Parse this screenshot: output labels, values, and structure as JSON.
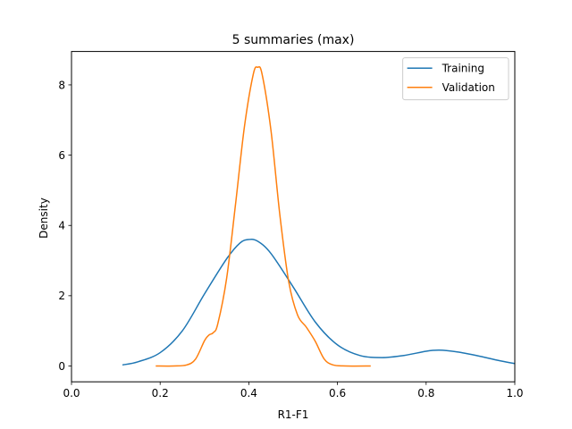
{
  "chart_data": {
    "type": "line",
    "title": "5 summaries (max)",
    "xlabel": "R1-F1",
    "ylabel": "Density",
    "xlim": [
      0.0,
      1.0
    ],
    "ylim": [
      -0.45,
      8.95
    ],
    "xticks": [
      0.0,
      0.2,
      0.4,
      0.6,
      0.8,
      1.0
    ],
    "xtick_labels": [
      "0.0",
      "0.2",
      "0.4",
      "0.6",
      "0.8",
      "1.0"
    ],
    "yticks": [
      0,
      2,
      4,
      6,
      8
    ],
    "ytick_labels": [
      "0",
      "2",
      "4",
      "6",
      "8"
    ],
    "grid": false,
    "legend_position": "top-right",
    "series": [
      {
        "name": "Training",
        "color": "#1f77b4",
        "points": [
          [
            0.115,
            0.03
          ],
          [
            0.15,
            0.12
          ],
          [
            0.2,
            0.38
          ],
          [
            0.25,
            1.0
          ],
          [
            0.3,
            2.05
          ],
          [
            0.35,
            3.05
          ],
          [
            0.38,
            3.5
          ],
          [
            0.4,
            3.6
          ],
          [
            0.42,
            3.55
          ],
          [
            0.45,
            3.2
          ],
          [
            0.5,
            2.25
          ],
          [
            0.55,
            1.25
          ],
          [
            0.6,
            0.6
          ],
          [
            0.65,
            0.3
          ],
          [
            0.7,
            0.24
          ],
          [
            0.75,
            0.3
          ],
          [
            0.8,
            0.42
          ],
          [
            0.83,
            0.45
          ],
          [
            0.87,
            0.4
          ],
          [
            0.92,
            0.28
          ],
          [
            0.97,
            0.14
          ],
          [
            1.0,
            0.07
          ]
        ]
      },
      {
        "name": "Validation",
        "color": "#ff7f0e",
        "points": [
          [
            0.19,
            0.0
          ],
          [
            0.23,
            0.0
          ],
          [
            0.26,
            0.03
          ],
          [
            0.28,
            0.2
          ],
          [
            0.3,
            0.72
          ],
          [
            0.31,
            0.88
          ],
          [
            0.32,
            0.95
          ],
          [
            0.33,
            1.2
          ],
          [
            0.35,
            2.5
          ],
          [
            0.37,
            4.6
          ],
          [
            0.39,
            6.8
          ],
          [
            0.41,
            8.3
          ],
          [
            0.42,
            8.5
          ],
          [
            0.43,
            8.3
          ],
          [
            0.45,
            6.7
          ],
          [
            0.47,
            4.3
          ],
          [
            0.49,
            2.4
          ],
          [
            0.51,
            1.45
          ],
          [
            0.53,
            1.1
          ],
          [
            0.55,
            0.7
          ],
          [
            0.57,
            0.2
          ],
          [
            0.59,
            0.03
          ],
          [
            0.62,
            0.0
          ],
          [
            0.675,
            0.0
          ]
        ]
      }
    ]
  }
}
